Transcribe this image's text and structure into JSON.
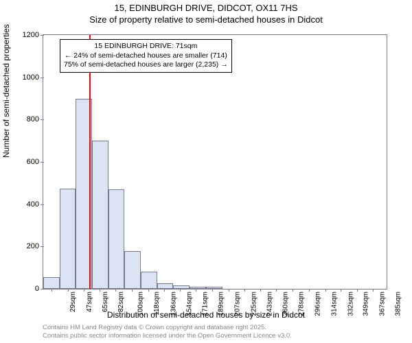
{
  "title": {
    "line1": "15, EDINBURGH DRIVE, DIDCOT, OX11 7HS",
    "line2": "Size of property relative to semi-detached houses in Didcot"
  },
  "chart": {
    "type": "histogram",
    "xlim": [
      20,
      400
    ],
    "ylim": [
      0,
      1200
    ],
    "ytick_step": 200,
    "yticks": [
      0,
      200,
      400,
      600,
      800,
      1000,
      1200
    ],
    "xticks": [
      "29sqm",
      "47sqm",
      "65sqm",
      "82sqm",
      "100sqm",
      "118sqm",
      "136sqm",
      "154sqm",
      "171sqm",
      "189sqm",
      "207sqm",
      "225sqm",
      "243sqm",
      "260sqm",
      "278sqm",
      "296sqm",
      "314sqm",
      "332sqm",
      "349sqm",
      "367sqm",
      "385sqm"
    ],
    "xtick_values": [
      29,
      47,
      65,
      82,
      100,
      118,
      136,
      154,
      171,
      189,
      207,
      225,
      243,
      260,
      278,
      296,
      314,
      332,
      349,
      367,
      385
    ],
    "bars": [
      {
        "x0": 20,
        "x1": 38,
        "value": 55
      },
      {
        "x0": 38,
        "x1": 56,
        "value": 475
      },
      {
        "x0": 56,
        "x1": 74,
        "value": 900
      },
      {
        "x0": 74,
        "x1": 92,
        "value": 700
      },
      {
        "x0": 92,
        "x1": 110,
        "value": 470
      },
      {
        "x0": 110,
        "x1": 128,
        "value": 180
      },
      {
        "x0": 128,
        "x1": 146,
        "value": 80
      },
      {
        "x0": 146,
        "x1": 164,
        "value": 25
      },
      {
        "x0": 164,
        "x1": 182,
        "value": 15
      },
      {
        "x0": 182,
        "x1": 200,
        "value": 10
      },
      {
        "x0": 200,
        "x1": 218,
        "value": 10
      }
    ],
    "bar_fill": "#dbe4f4",
    "bar_border": "#7a7a8a",
    "axis_color": "#7a7a8a",
    "background_color": "#ffffff",
    "marker": {
      "value_sqm": 71,
      "color": "#ff0000"
    },
    "annotation": {
      "line1": "15 EDINBURGH DRIVE: 71sqm",
      "line2": "← 24% of semi-detached houses are smaller (714)",
      "line3": "75% of semi-detached houses are larger (2,235) →"
    },
    "ylabel": "Number of semi-detached properties",
    "xlabel": "Distribution of semi-detached houses by size in Didcot",
    "title_fontsize": 13,
    "label_fontsize": 12,
    "tick_fontsize": 11
  },
  "footer": {
    "line1": "Contains HM Land Registry data © Crown copyright and database right 2025.",
    "line2": "Contains public sector information licensed under the Open Government Licence v3.0."
  }
}
